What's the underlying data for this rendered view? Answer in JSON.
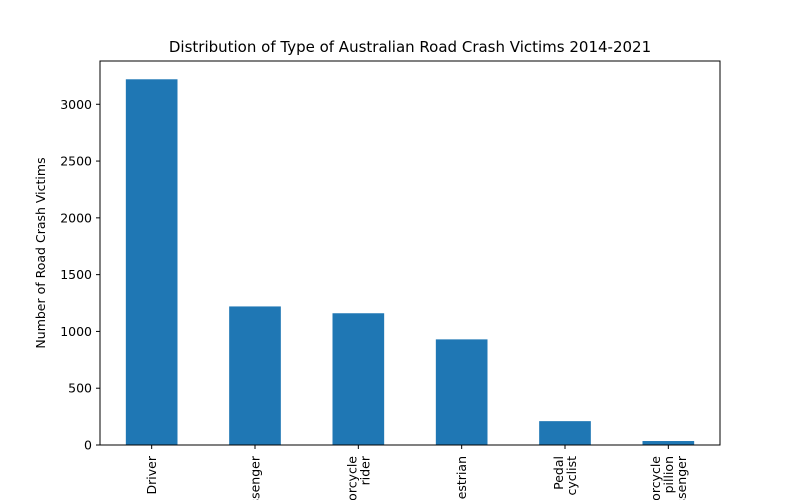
{
  "chart_data": {
    "type": "bar",
    "title": "Distribution of Type of Australian Road Crash Victims 2014-2021",
    "xlabel": "",
    "ylabel": "Number of Road Crash Victims",
    "categories": [
      [
        "Driver"
      ],
      [
        "Passenger"
      ],
      [
        "Motorcycle",
        "rider"
      ],
      [
        "Pedestrian"
      ],
      [
        "Pedal",
        "cyclist"
      ],
      [
        "Motorcycle",
        "pillion",
        "passenger"
      ]
    ],
    "values": [
      3220,
      1220,
      1160,
      930,
      210,
      35
    ],
    "ylim": [
      0,
      3381
    ],
    "yticks": [
      0,
      500,
      1000,
      1500,
      2000,
      2500,
      3000
    ],
    "color": "#1f77b4",
    "grid": false,
    "legend": "none"
  }
}
